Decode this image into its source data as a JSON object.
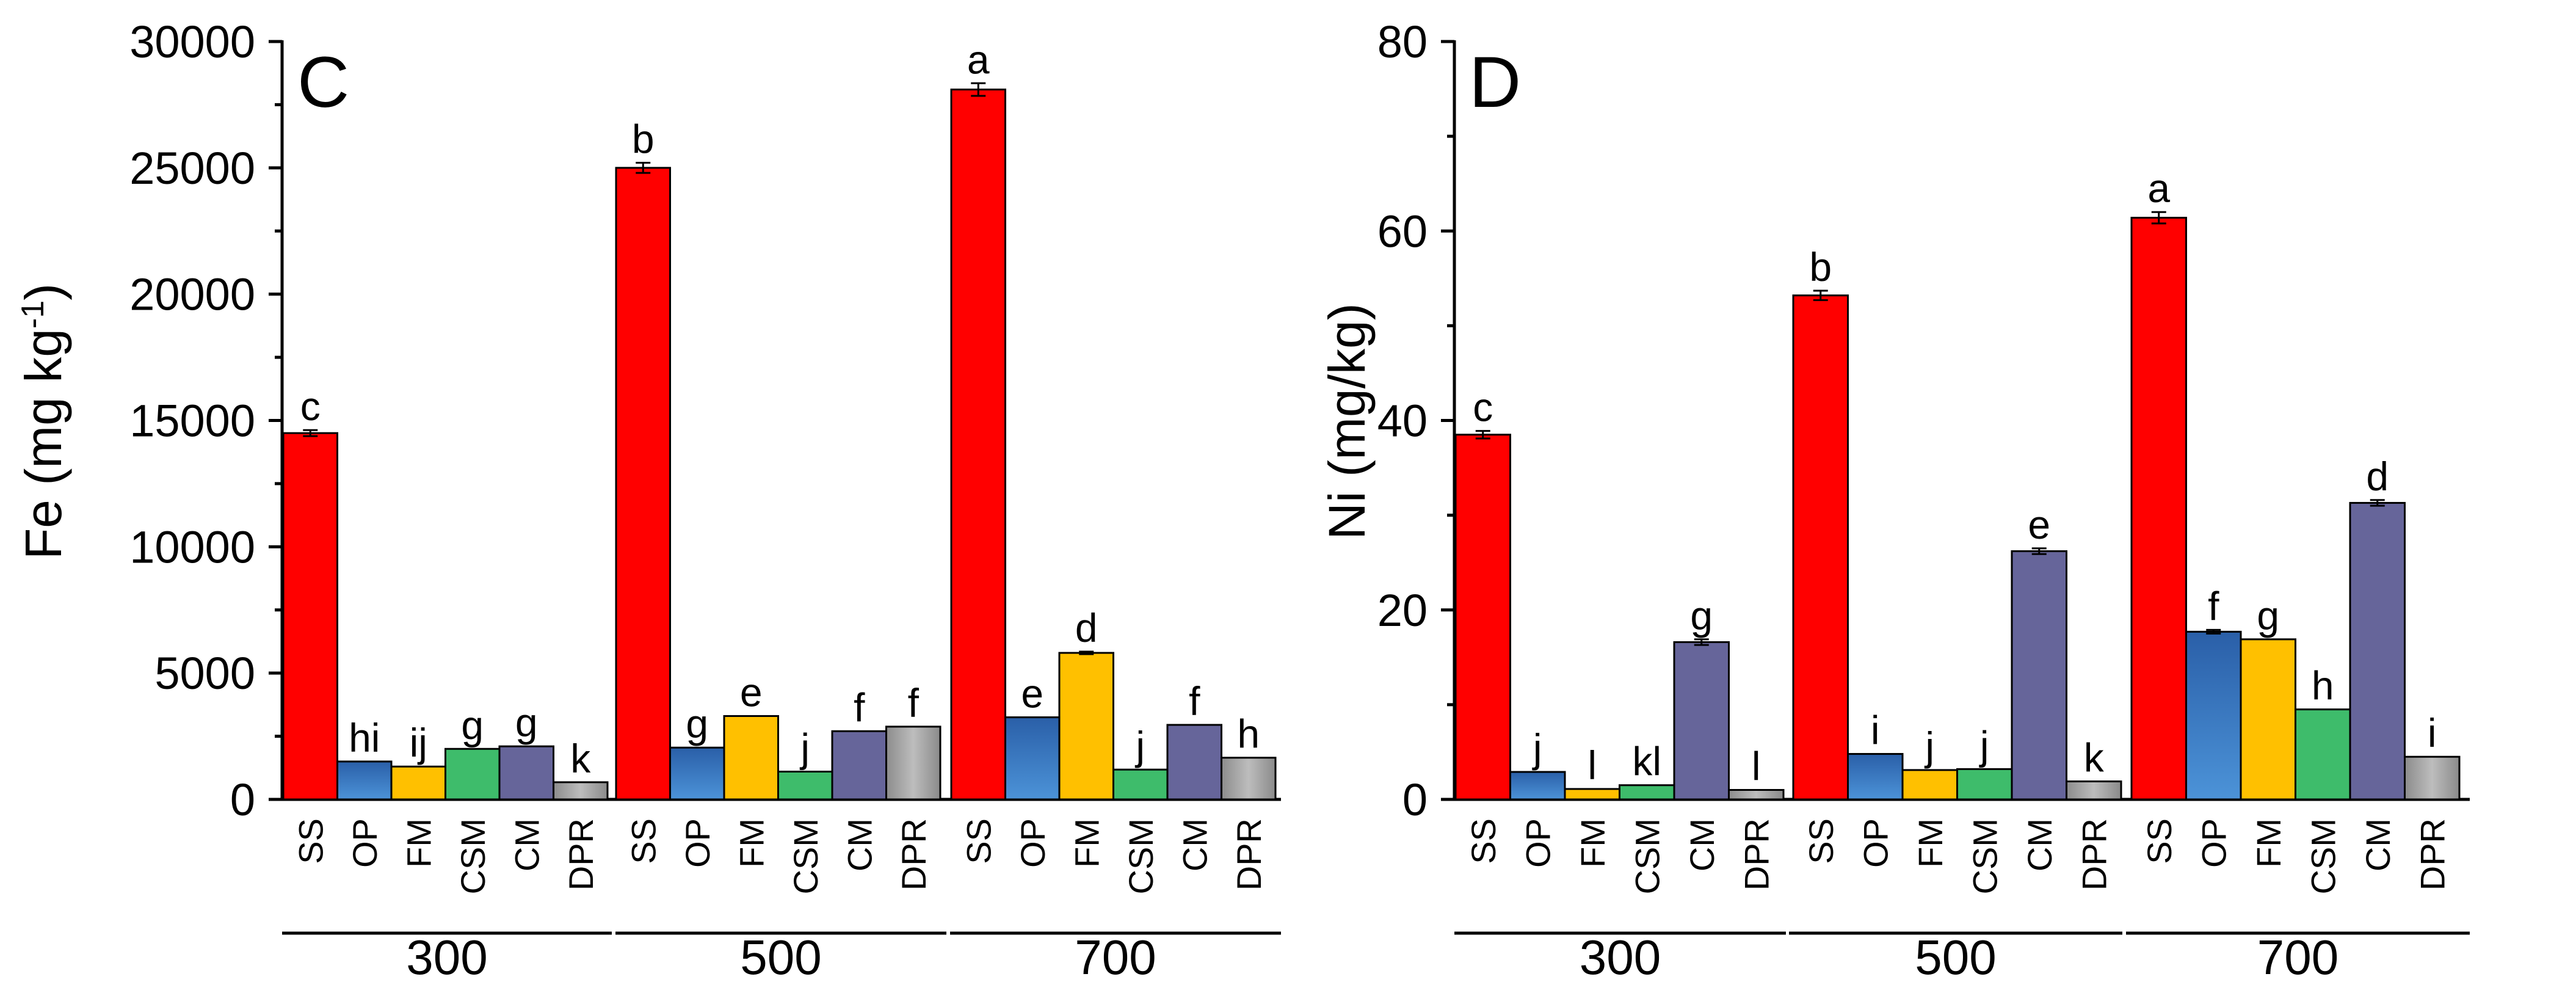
{
  "chart_data": [
    {
      "type": "bar",
      "panel_label": "C",
      "ylabel": "Fe (mg kg",
      "ylabel_sup": "-1",
      "ylabel_close": ")",
      "ylim": [
        0,
        30000
      ],
      "yticks": [
        0,
        5000,
        10000,
        15000,
        20000,
        25000,
        30000
      ],
      "ytick_labels": [
        "0",
        "5000",
        "10000",
        "15000",
        "20000",
        "25000",
        "30000"
      ],
      "groups": [
        {
          "label": "300",
          "bars": [
            {
              "category": "SS",
              "value": 14500,
              "error": 120,
              "sig": "c"
            },
            {
              "category": "OP",
              "value": 1500,
              "error": 0,
              "sig": "hi"
            },
            {
              "category": "FM",
              "value": 1300,
              "error": 0,
              "sig": "ij"
            },
            {
              "category": "CSM",
              "value": 2000,
              "error": 0,
              "sig": "g"
            },
            {
              "category": "CM",
              "value": 2100,
              "error": 0,
              "sig": "g"
            },
            {
              "category": "DPR",
              "value": 680,
              "error": 0,
              "sig": "k"
            }
          ]
        },
        {
          "label": "500",
          "bars": [
            {
              "category": "SS",
              "value": 25000,
              "error": 200,
              "sig": "b"
            },
            {
              "category": "OP",
              "value": 2050,
              "error": 0,
              "sig": "g"
            },
            {
              "category": "FM",
              "value": 3300,
              "error": 0,
              "sig": "e"
            },
            {
              "category": "CSM",
              "value": 1100,
              "error": 0,
              "sig": "j"
            },
            {
              "category": "CM",
              "value": 2700,
              "error": 0,
              "sig": "f"
            },
            {
              "category": "DPR",
              "value": 2880,
              "error": 0,
              "sig": "f"
            }
          ]
        },
        {
          "label": "700",
          "bars": [
            {
              "category": "SS",
              "value": 28100,
              "error": 250,
              "sig": "a"
            },
            {
              "category": "OP",
              "value": 3250,
              "error": 0,
              "sig": "e"
            },
            {
              "category": "FM",
              "value": 5800,
              "error": 50,
              "sig": "d"
            },
            {
              "category": "CSM",
              "value": 1180,
              "error": 0,
              "sig": "j"
            },
            {
              "category": "CM",
              "value": 2950,
              "error": 0,
              "sig": "f"
            },
            {
              "category": "DPR",
              "value": 1650,
              "error": 0,
              "sig": "h"
            }
          ]
        }
      ]
    },
    {
      "type": "bar",
      "panel_label": "D",
      "ylabel": "Ni (mg/kg)",
      "ylabel_sup": "",
      "ylabel_close": "",
      "ylim": [
        0,
        80
      ],
      "yticks": [
        0,
        20,
        40,
        60,
        80
      ],
      "ytick_labels": [
        "0",
        "20",
        "40",
        "60",
        "80"
      ],
      "groups": [
        {
          "label": "300",
          "bars": [
            {
              "category": "SS",
              "value": 38.5,
              "error": 0.4,
              "sig": "c"
            },
            {
              "category": "OP",
              "value": 2.9,
              "error": 0,
              "sig": "j"
            },
            {
              "category": "FM",
              "value": 1.1,
              "error": 0,
              "sig": "l"
            },
            {
              "category": "CSM",
              "value": 1.5,
              "error": 0,
              "sig": "kl"
            },
            {
              "category": "CM",
              "value": 16.6,
              "error": 0.3,
              "sig": "g"
            },
            {
              "category": "DPR",
              "value": 1.0,
              "error": 0,
              "sig": "l"
            }
          ]
        },
        {
          "label": "500",
          "bars": [
            {
              "category": "SS",
              "value": 53.2,
              "error": 0.5,
              "sig": "b"
            },
            {
              "category": "OP",
              "value": 4.8,
              "error": 0,
              "sig": "i"
            },
            {
              "category": "FM",
              "value": 3.1,
              "error": 0,
              "sig": "j"
            },
            {
              "category": "CSM",
              "value": 3.2,
              "error": 0,
              "sig": "j"
            },
            {
              "category": "CM",
              "value": 26.2,
              "error": 0.3,
              "sig": "e"
            },
            {
              "category": "DPR",
              "value": 1.9,
              "error": 0,
              "sig": "k"
            }
          ]
        },
        {
          "label": "700",
          "bars": [
            {
              "category": "SS",
              "value": 61.4,
              "error": 0.6,
              "sig": "a"
            },
            {
              "category": "OP",
              "value": 17.7,
              "error": 0.2,
              "sig": "f"
            },
            {
              "category": "FM",
              "value": 16.9,
              "error": 0,
              "sig": "g"
            },
            {
              "category": "CSM",
              "value": 9.5,
              "error": 0,
              "sig": "h"
            },
            {
              "category": "CM",
              "value": 31.3,
              "error": 0.3,
              "sig": "d"
            },
            {
              "category": "DPR",
              "value": 4.5,
              "error": 0,
              "sig": "i"
            }
          ]
        }
      ]
    }
  ],
  "colors": {
    "SS": "#ff0000",
    "OP": "#2e63a6",
    "OP_gradient_top": "#2a5fa8",
    "OP_gradient_bottom": "#4c93d8",
    "FM": "#ffc000",
    "CSM": "#3ebc6b",
    "CM": "#66659a",
    "DPR_left": "#8c8c8c",
    "DPR_mid": "#bdbdbd",
    "DPR_right": "#8a8a8a"
  }
}
